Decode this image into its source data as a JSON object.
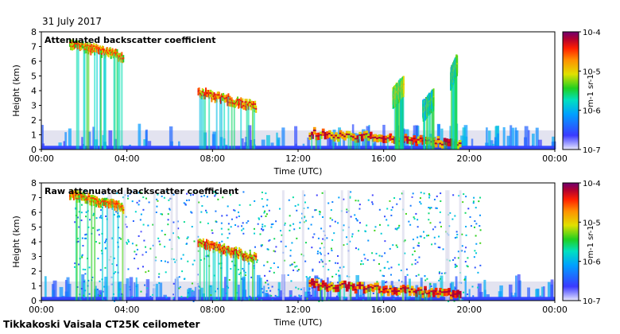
{
  "date_label": "31 July 2017",
  "footer": "Tikkakoski Vaisala CT25K ceilometer",
  "chart_data": [
    {
      "type": "heatmap",
      "title": "Attenuated backscatter coefficient",
      "xlabel": "Time (UTC)",
      "ylabel": "Height (km)",
      "x_ticks": [
        "00:00",
        "04:00",
        "08:00",
        "12:00",
        "16:00",
        "20:00",
        "00:00"
      ],
      "y_ticks": [
        "0",
        "1",
        "2",
        "3",
        "4",
        "5",
        "6",
        "7",
        "8"
      ],
      "ylim": [
        0,
        8
      ],
      "xlim_hours": [
        0,
        24
      ],
      "colorbar": {
        "ticks": [
          "10-4",
          "10-5",
          "10-6",
          "10-7"
        ],
        "unit": "m-1 sr-1",
        "scale": "log",
        "range": [
          1e-07,
          0.0001
        ]
      },
      "features": [
        {
          "kind": "cloud_layer",
          "from_h": 1.3,
          "to_h": 3.8,
          "height_km": [
            7.2,
            6.3
          ],
          "level": 0.85
        },
        {
          "kind": "cloud_layer",
          "from_h": 7.3,
          "to_h": 10.0,
          "height_km": [
            3.9,
            2.9
          ],
          "level": 0.9
        },
        {
          "kind": "cloud_layer",
          "from_h": 12.5,
          "to_h": 19.5,
          "height_km": [
            1.1,
            0.4
          ],
          "level": 0.95
        },
        {
          "kind": "cloud_patch",
          "from_h": 16.4,
          "to_h": 16.9,
          "height_km": [
            3.5,
            4.3
          ],
          "level": 0.7
        },
        {
          "kind": "cloud_patch",
          "from_h": 17.8,
          "to_h": 18.3,
          "height_km": [
            2.6,
            3.4
          ],
          "level": 0.6
        },
        {
          "kind": "cloud_patch",
          "from_h": 19.1,
          "to_h": 19.4,
          "height_km": [
            4.8,
            5.8
          ],
          "level": 0.6
        }
      ]
    },
    {
      "type": "heatmap",
      "title": "Raw attenuated backscatter coefficient",
      "xlabel": "Time (UTC)",
      "ylabel": "Height (km)",
      "x_ticks": [
        "00:00",
        "04:00",
        "08:00",
        "12:00",
        "16:00",
        "20:00",
        "00:00"
      ],
      "y_ticks": [
        "0",
        "1",
        "2",
        "3",
        "4",
        "5",
        "6",
        "7",
        "8"
      ],
      "ylim": [
        0,
        8
      ],
      "xlim_hours": [
        0,
        24
      ],
      "colorbar": {
        "ticks": [
          "10-4",
          "10-5",
          "10-6",
          "10-7"
        ],
        "unit": "m-1 sr-1",
        "scale": "log",
        "range": [
          1e-07,
          0.0001
        ]
      },
      "features": [
        {
          "kind": "noise_region",
          "from_h": 1.5,
          "to_h": 20.5,
          "height_km": [
            0,
            7.5
          ],
          "level": 0.45
        },
        {
          "kind": "cloud_layer",
          "from_h": 1.3,
          "to_h": 3.8,
          "height_km": [
            7.2,
            6.3
          ],
          "level": 0.85
        },
        {
          "kind": "cloud_layer",
          "from_h": 7.3,
          "to_h": 10.0,
          "height_km": [
            3.9,
            2.9
          ],
          "level": 0.9
        },
        {
          "kind": "cloud_layer",
          "from_h": 12.5,
          "to_h": 19.5,
          "height_km": [
            1.1,
            0.4
          ],
          "level": 0.95
        }
      ]
    }
  ]
}
